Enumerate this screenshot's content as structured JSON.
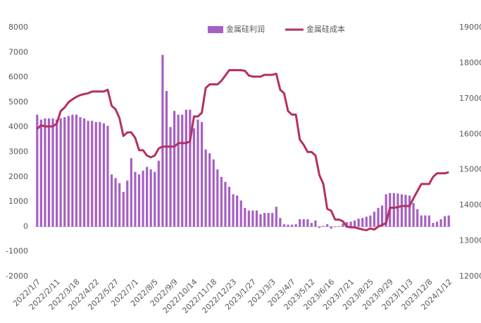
{
  "chart_data": {
    "type": "bar_line",
    "categories": [
      "2022/1/7",
      null,
      null,
      null,
      null,
      "2022/2/11",
      null,
      null,
      null,
      null,
      "2022/3/18",
      null,
      null,
      null,
      null,
      "2022/4/22",
      null,
      null,
      null,
      null,
      "2022/5/27",
      null,
      null,
      null,
      null,
      "2022/7/1",
      null,
      null,
      null,
      null,
      "2022/8/5",
      null,
      null,
      null,
      null,
      "2022/9/9",
      null,
      null,
      null,
      null,
      "2022/10/14",
      null,
      null,
      null,
      null,
      "2022/11/18",
      null,
      null,
      null,
      null,
      "2022/12/23",
      null,
      null,
      null,
      null,
      "2023/1/27",
      null,
      null,
      null,
      null,
      "2023/3/3",
      null,
      null,
      null,
      null,
      "2023/4/7",
      null,
      null,
      null,
      null,
      "2023/5/12",
      null,
      null,
      null,
      null,
      "2023/6/16",
      null,
      null,
      null,
      null,
      "2023/7/21",
      null,
      null,
      null,
      null,
      "2023/8/25",
      null,
      null,
      null,
      null,
      "2023/9/29",
      null,
      null,
      null,
      null,
      "2023/11/3",
      null,
      null,
      null,
      null,
      "2023/12/8",
      null,
      null,
      null,
      null,
      "2024/1/12"
    ],
    "series": [
      {
        "name": "金属硅利润",
        "type": "bar",
        "color": "#a65fc4",
        "axis": "y",
        "values": [
          4500,
          4300,
          4350,
          4350,
          4350,
          4300,
          4350,
          4400,
          4450,
          4500,
          4500,
          4400,
          4350,
          4250,
          4250,
          4200,
          4200,
          4150,
          4050,
          2100,
          1950,
          1750,
          1400,
          1850,
          2750,
          2200,
          2100,
          2250,
          2400,
          2300,
          2200,
          2650,
          6900,
          5450,
          4000,
          4650,
          4500,
          4500,
          4700,
          4700,
          3950,
          4300,
          4200,
          3100,
          2950,
          2700,
          2300,
          2000,
          1800,
          1600,
          1300,
          1250,
          1050,
          750,
          650,
          650,
          650,
          500,
          550,
          550,
          550,
          800,
          350,
          100,
          80,
          80,
          100,
          300,
          300,
          300,
          150,
          250,
          -50,
          30,
          100,
          -80,
          -20,
          20,
          130,
          180,
          200,
          250,
          320,
          350,
          400,
          450,
          600,
          750,
          850,
          1300,
          1350,
          1350,
          1330,
          1300,
          1280,
          1250,
          950,
          700,
          450,
          450,
          450,
          150,
          200,
          300,
          420,
          450
        ]
      },
      {
        "name": "金属硅成本",
        "type": "line",
        "color": "#b5305e",
        "axis": "y2",
        "values": [
          16150,
          16250,
          16220,
          16220,
          16220,
          16300,
          16650,
          16750,
          16900,
          16980,
          17050,
          17100,
          17130,
          17150,
          17200,
          17200,
          17200,
          17200,
          17250,
          16800,
          16700,
          16450,
          15950,
          16050,
          16050,
          15900,
          15550,
          15550,
          15400,
          15350,
          15400,
          15600,
          15650,
          15650,
          15650,
          15650,
          15750,
          15750,
          15750,
          15800,
          16500,
          16500,
          16600,
          17300,
          17400,
          17400,
          17400,
          17500,
          17650,
          17800,
          17800,
          17800,
          17800,
          17780,
          17650,
          17620,
          17620,
          17620,
          17670,
          17670,
          17670,
          17700,
          17250,
          17150,
          16650,
          16550,
          16550,
          15850,
          15700,
          15500,
          15500,
          15400,
          14850,
          14600,
          13900,
          13850,
          13600,
          13600,
          13550,
          13400,
          13380,
          13380,
          13350,
          13320,
          13300,
          13350,
          13320,
          13400,
          13450,
          13500,
          13930,
          13930,
          13950,
          13980,
          13980,
          13980,
          14200,
          14400,
          14600,
          14600,
          14600,
          14800,
          14900,
          14900,
          14900,
          14930
        ]
      }
    ],
    "ylim": [
      -2000,
      8000
    ],
    "yticks": [
      -2000,
      -1000,
      0,
      1000,
      2000,
      3000,
      4000,
      5000,
      6000,
      7000,
      8000
    ],
    "y2lim": [
      12000,
      19000
    ],
    "y2ticks": [
      12000,
      13000,
      14000,
      15000,
      16000,
      17000,
      18000,
      19000
    ],
    "grid": false,
    "legend": "top"
  }
}
